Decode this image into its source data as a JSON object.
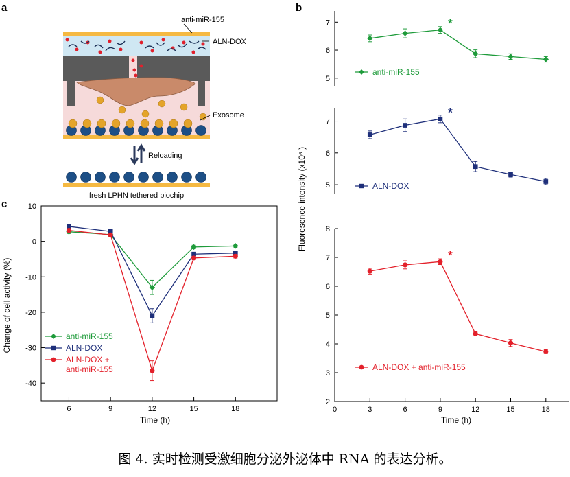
{
  "figure": {
    "caption": "图 4. 实时检测受激细胞分泌外泌体中 RNA 的表达分析。",
    "panel_a": {
      "letter": "a",
      "labels": {
        "anti_mir": "anti-miR-155",
        "aln_dox": "ALN-DOX",
        "exosome": "Exosome",
        "reloading": "Reloading",
        "chip": "fresh LPHN tethered  biochip"
      },
      "colors": {
        "gold_layer": "#f5b942",
        "channel": "#cfe7f3",
        "chamber": "#f6dada",
        "device": "#5a5a5a",
        "cell": "#c98a6a",
        "exosome": "#e4a42a",
        "bead": "#1d4f86",
        "dox": "#e0202c"
      }
    },
    "panel_b": {
      "letter": "b"
    },
    "panel_c": {
      "letter": "c"
    }
  },
  "chart_data": [
    {
      "type": "line",
      "panel": "b",
      "title": "",
      "xlabel": "Time (h)",
      "ylabel": "Fluoresence intensity (x10⁶ )",
      "xlim": [
        0,
        20
      ],
      "xticks": [
        0,
        3,
        6,
        9,
        12,
        15,
        18
      ],
      "grid": false,
      "subplots": [
        {
          "ylim": [
            4.7,
            7.4
          ],
          "yticks": [
            5,
            6,
            7
          ],
          "legend": "anti-miR-155",
          "color": "#1e9b3a",
          "marker": "diamond",
          "x": [
            3,
            6,
            9,
            12,
            15,
            18
          ],
          "y": [
            6.42,
            6.6,
            6.72,
            5.87,
            5.77,
            5.67
          ],
          "err": [
            0.12,
            0.16,
            0.12,
            0.14,
            0.1,
            0.1
          ],
          "annotation": {
            "text": "*",
            "x": 9
          }
        },
        {
          "ylim": [
            4.7,
            7.4
          ],
          "yticks": [
            5,
            6,
            7
          ],
          "legend": "ALN-DOX",
          "color": "#1e2f7a",
          "marker": "square",
          "x": [
            3,
            6,
            9,
            12,
            15,
            18
          ],
          "y": [
            6.57,
            6.87,
            7.07,
            5.57,
            5.32,
            5.1
          ],
          "err": [
            0.12,
            0.2,
            0.12,
            0.16,
            0.08,
            0.1
          ],
          "annotation": {
            "text": "*",
            "x": 9
          }
        },
        {
          "ylim": [
            2,
            8
          ],
          "yticks": [
            2,
            3,
            4,
            5,
            6,
            7,
            8
          ],
          "legend": "ALN-DOX + anti-miR-155",
          "color": "#e3202a",
          "marker": "circle",
          "x": [
            3,
            6,
            9,
            12,
            15,
            18
          ],
          "y": [
            6.52,
            6.74,
            6.85,
            4.35,
            4.03,
            3.73
          ],
          "err": [
            0.1,
            0.14,
            0.1,
            0.07,
            0.12,
            0.07
          ],
          "annotation": {
            "text": "*",
            "x": 9
          }
        }
      ]
    },
    {
      "type": "line",
      "panel": "c",
      "title": "",
      "xlabel": "Time (h)",
      "ylabel": "Change of cell activity (%)",
      "xlim": [
        4,
        21
      ],
      "ylim": [
        -45,
        10
      ],
      "xticks": [
        6,
        9,
        12,
        15,
        18
      ],
      "yticks": [
        10,
        0,
        -10,
        -20,
        -30,
        -40
      ],
      "grid": false,
      "legend_position": "bottom-left",
      "series": [
        {
          "name": "anti-miR-155",
          "color": "#1e9b3a",
          "marker": "diamond",
          "x": [
            6,
            9,
            12,
            15,
            18
          ],
          "y": [
            2.7,
            1.9,
            -13,
            -1.6,
            -1.3
          ],
          "err": [
            0.5,
            0.5,
            2,
            0.5,
            0.5
          ]
        },
        {
          "name": "ALN-DOX",
          "color": "#1e2f7a",
          "marker": "square",
          "x": [
            6,
            9,
            12,
            15,
            18
          ],
          "y": [
            4.2,
            2.8,
            -21,
            -3.6,
            -3.3
          ],
          "err": [
            0.5,
            0.5,
            2,
            0.5,
            0.5
          ]
        },
        {
          "name": "ALN-DOX +\nanti-miR-155",
          "legend_lines": [
            "ALN-DOX +",
            "anti-miR-155"
          ],
          "color": "#e3202a",
          "marker": "circle",
          "x": [
            6,
            9,
            12,
            15,
            18
          ],
          "y": [
            3.1,
            1.8,
            -36.5,
            -4.7,
            -4.2
          ],
          "err": [
            0.5,
            0.5,
            2.8,
            0.5,
            0.5
          ]
        }
      ]
    }
  ]
}
